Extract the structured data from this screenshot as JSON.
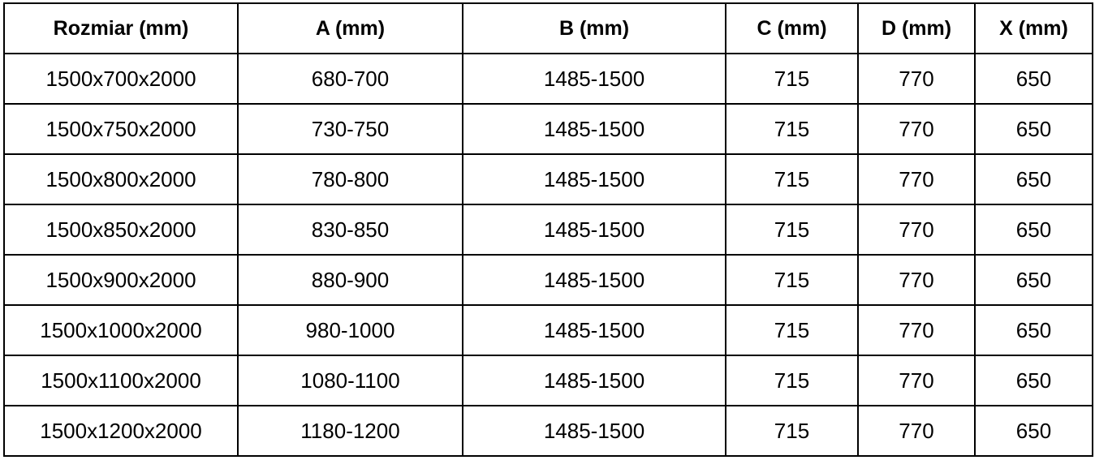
{
  "table": {
    "headers": [
      "Rozmiar (mm)",
      "A (mm)",
      "B (mm)",
      "C (mm)",
      "D (mm)",
      "X (mm)"
    ],
    "rows": [
      [
        "1500x700x2000",
        "680-700",
        "1485-1500",
        "715",
        "770",
        "650"
      ],
      [
        "1500x750x2000",
        "730-750",
        "1485-1500",
        "715",
        "770",
        "650"
      ],
      [
        "1500x800x2000",
        "780-800",
        "1485-1500",
        "715",
        "770",
        "650"
      ],
      [
        "1500x850x2000",
        "830-850",
        "1485-1500",
        "715",
        "770",
        "650"
      ],
      [
        "1500x900x2000",
        "880-900",
        "1485-1500",
        "715",
        "770",
        "650"
      ],
      [
        "1500x1000x2000",
        "980-1000",
        "1485-1500",
        "715",
        "770",
        "650"
      ],
      [
        "1500x1100x2000",
        "1080-1100",
        "1485-1500",
        "715",
        "770",
        "650"
      ],
      [
        "1500x1200x2000",
        "1180-1200",
        "1485-1500",
        "715",
        "770",
        "650"
      ]
    ]
  }
}
